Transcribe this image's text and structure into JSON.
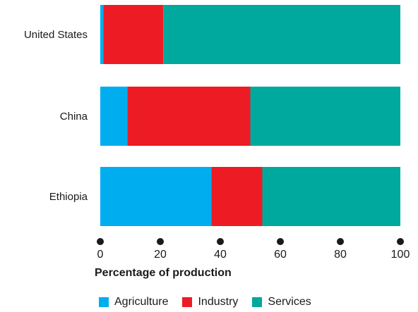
{
  "chart_data": {
    "type": "bar",
    "orientation": "horizontal",
    "stacked": true,
    "categories": [
      "United States",
      "China",
      "Ethiopia"
    ],
    "series": [
      {
        "name": "Agriculture",
        "color": "#00aeef",
        "values": [
          1,
          9,
          37
        ]
      },
      {
        "name": "Industry",
        "color": "#ed1c24",
        "values": [
          20,
          41,
          17
        ]
      },
      {
        "name": "Services",
        "color": "#00a99d",
        "values": [
          79,
          50,
          46
        ]
      }
    ],
    "xlabel": "Percentage of production",
    "xlim": [
      0,
      100
    ],
    "xticks": [
      "0",
      "20",
      "40",
      "60",
      "80",
      "100"
    ],
    "legend_position": "bottom",
    "grid": false
  }
}
